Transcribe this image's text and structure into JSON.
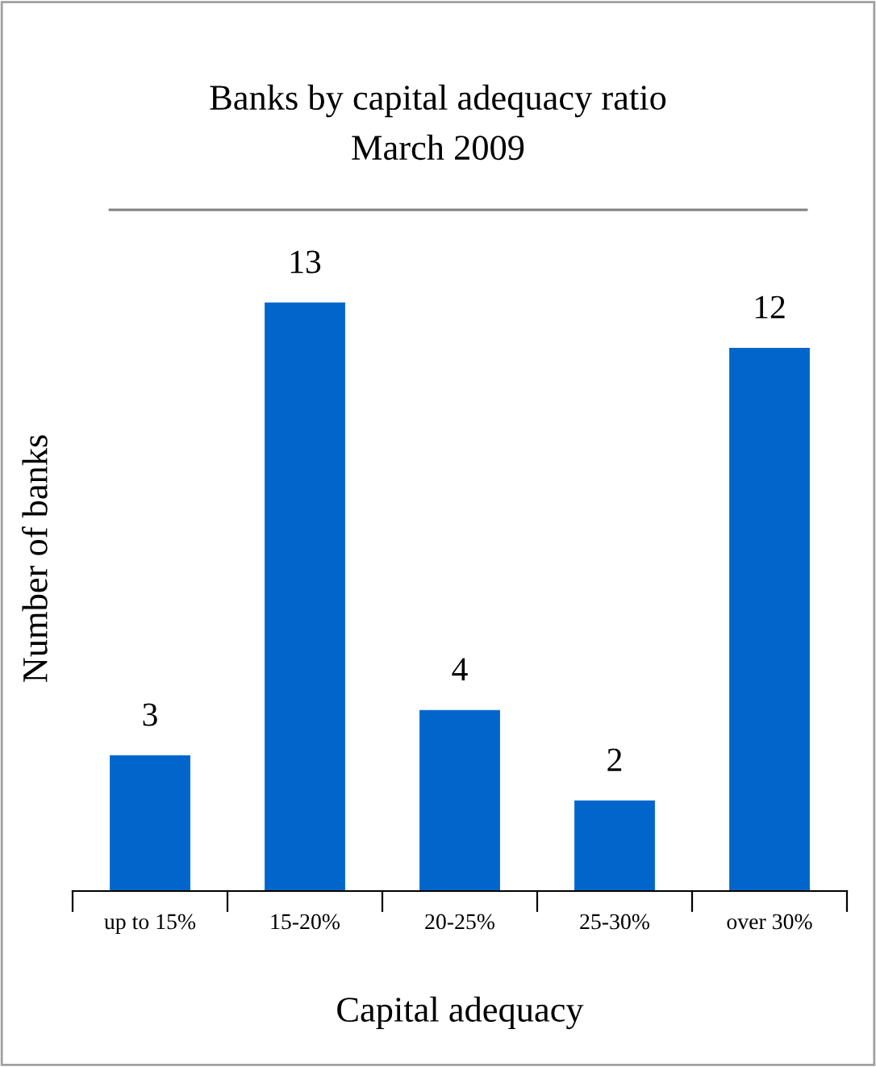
{
  "chart_data": {
    "type": "bar",
    "title": "Banks by capital adequacy ratio\nMarch 2009",
    "xlabel": "Capital adequacy",
    "ylabel": "Number of banks",
    "categories": [
      "up to 15%",
      "15-20%",
      "20-25%",
      "25-30%",
      "over 30%"
    ],
    "values": [
      3,
      13,
      4,
      2,
      12
    ],
    "color": "#0066cc",
    "data_labels": true,
    "grid": false,
    "legend": false
  }
}
